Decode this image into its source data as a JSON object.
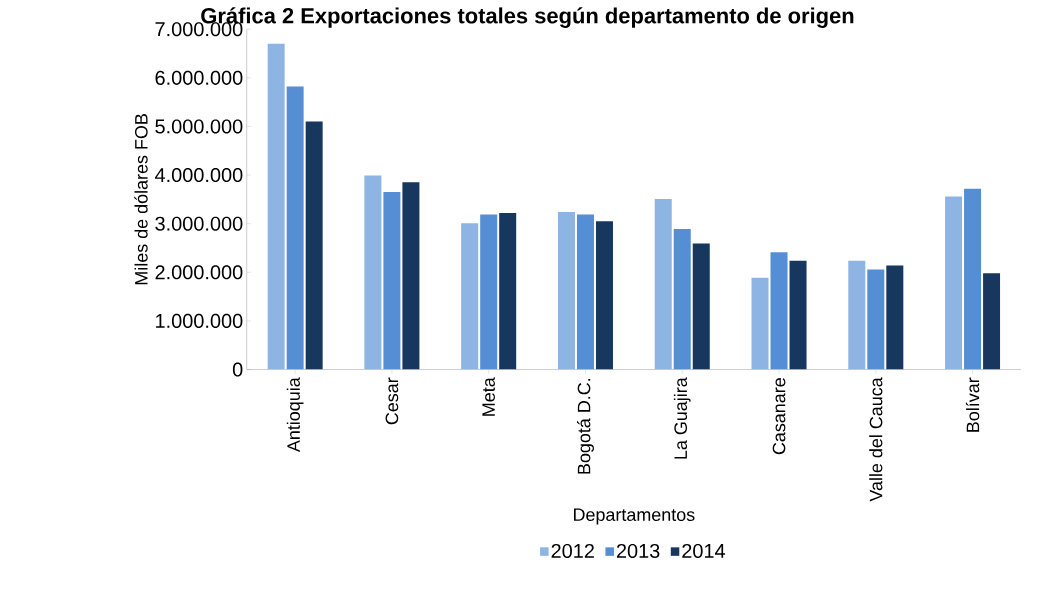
{
  "chart_data": {
    "type": "bar",
    "title": "Gráfica 2 Exportaciones totales según departamento de origen",
    "xlabel": "Departamentos",
    "ylabel": "Miles de dólares FOB",
    "categories": [
      "Antioquia",
      "Cesar",
      "Meta",
      "Bogotá D.C.",
      "La Guajira",
      "Casanare",
      "Valle del Cauca",
      "Bolívar"
    ],
    "series": [
      {
        "name": "2012",
        "color": "#8eb4e3",
        "values": [
          6700000,
          3990000,
          3010000,
          3240000,
          3510000,
          1890000,
          2240000,
          3560000
        ]
      },
      {
        "name": "2013",
        "color": "#558ed5",
        "values": [
          5820000,
          3650000,
          3190000,
          3190000,
          2890000,
          2410000,
          2060000,
          3720000
        ]
      },
      {
        "name": "2014",
        "color": "#17375e",
        "values": [
          5100000,
          3850000,
          3220000,
          3050000,
          2590000,
          2240000,
          2140000,
          1980000
        ]
      }
    ],
    "ylim": [
      0,
      7000000
    ],
    "yticks": [
      {
        "value": 0,
        "label": "0"
      },
      {
        "value": 1000000,
        "label": "1.000.000"
      },
      {
        "value": 2000000,
        "label": "2.000.000"
      },
      {
        "value": 3000000,
        "label": "3.000.000"
      },
      {
        "value": 4000000,
        "label": "4.000.000"
      },
      {
        "value": 5000000,
        "label": "5.000.000"
      },
      {
        "value": 6000000,
        "label": "6.000.000"
      },
      {
        "value": 7000000,
        "label": "7.000.000"
      }
    ],
    "legend": "bottom",
    "grid": false
  }
}
